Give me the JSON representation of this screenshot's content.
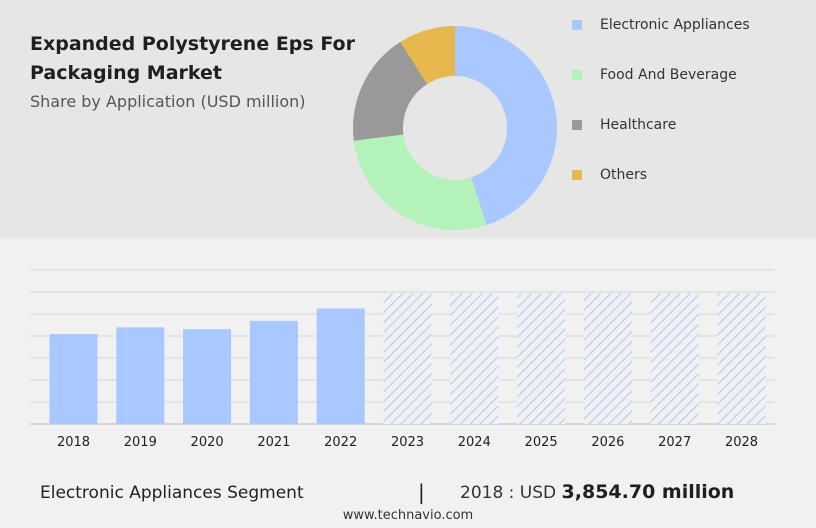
{
  "header": {
    "title": "Expanded Polystyrene Eps For Packaging Market",
    "subtitle": "Share by Application (USD million)"
  },
  "chart_data": [
    {
      "type": "pie",
      "style": "donut",
      "categories": [
        "Electronic Appliances",
        "Food And Beverage",
        "Healthcare",
        "Others"
      ],
      "values": [
        45,
        28,
        18,
        9
      ],
      "colors": [
        "#a9c8ff",
        "#b3f2b8",
        "#999999",
        "#e6b84e"
      ],
      "legend_placement": "right"
    },
    {
      "type": "bar",
      "categories": [
        "2018",
        "2019",
        "2020",
        "2021",
        "2022",
        "2023",
        "2024",
        "2025",
        "2026",
        "2027",
        "2028"
      ],
      "values": [
        3854.7,
        4140,
        4060,
        4420,
        4950,
        5600,
        5600,
        5600,
        5600,
        5600,
        5600
      ],
      "forecast_from_index": 5,
      "ylim": [
        0,
        6600
      ],
      "grid": true,
      "colors": {
        "actual": "#a9c8ff",
        "forecast": "#a9c8ff"
      }
    }
  ],
  "footer": {
    "segment_label": "Electronic Appliances Segment",
    "divider": "|",
    "value_prefix": "2018 : USD",
    "value_amount": "3,854.70 million",
    "source": "www.technavio.com"
  }
}
